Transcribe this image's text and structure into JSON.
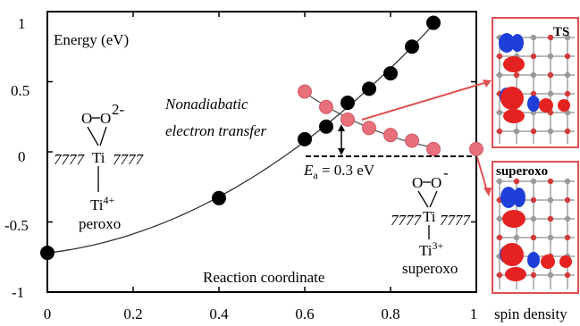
{
  "chart_data": {
    "type": "scatter",
    "ylabel": "Energy (eV)",
    "xlabel": "Reaction coordinate",
    "xlim": [
      0,
      1
    ],
    "ylim": [
      -1,
      1
    ],
    "x_ticks": [
      "0",
      "0.2",
      "0.4",
      "0.6",
      "0.8",
      "1"
    ],
    "y_ticks": [
      "1",
      "0.5",
      "0",
      "-0.5",
      "-1"
    ],
    "series": [
      {
        "color": "#000000",
        "points": [
          {
            "x": 0.0,
            "y": -0.72
          },
          {
            "x": 0.4,
            "y": -0.33
          },
          {
            "x": 0.6,
            "y": 0.09
          },
          {
            "x": 0.65,
            "y": 0.18
          },
          {
            "x": 0.7,
            "y": 0.35
          },
          {
            "x": 0.75,
            "y": 0.45
          },
          {
            "x": 0.8,
            "y": 0.56
          },
          {
            "x": 0.85,
            "y": 0.75
          },
          {
            "x": 0.9,
            "y": 0.92
          }
        ]
      },
      {
        "color": "#e8707a",
        "points": [
          {
            "x": 0.6,
            "y": 0.43
          },
          {
            "x": 0.65,
            "y": 0.32
          },
          {
            "x": 0.7,
            "y": 0.23
          },
          {
            "x": 0.75,
            "y": 0.17
          },
          {
            "x": 0.8,
            "y": 0.12
          },
          {
            "x": 0.85,
            "y": 0.08
          },
          {
            "x": 0.9,
            "y": 0.02
          },
          {
            "x": 1.0,
            "y": 0.02
          }
        ]
      }
    ],
    "annotations": {
      "nonadiabatic_line1": "Nonadiabatic",
      "nonadiabatic_line2": "electron transfer",
      "ea_symbol": "E",
      "ea_sub": "a",
      "ea_value": " = 0.3 eV",
      "peroxo_label": "peroxo",
      "peroxo_charge": "2-",
      "peroxo_ti_top": "Ti",
      "peroxo_ti_bottom": "Ti",
      "peroxo_ti_bottom_sup": "4+",
      "superoxo_label": "superoxo",
      "superoxo_charge": "-",
      "superoxo_ti_top": "Ti",
      "superoxo_ti_bottom": "Ti",
      "superoxo_ti_bottom_sup": "3+",
      "oxygen": "O",
      "surface_hatch": "7777"
    }
  },
  "panels": {
    "ts_label": "TS",
    "superoxo_label": "superoxo",
    "spin_density_label": "spin density",
    "frame_color": "#e05050"
  }
}
